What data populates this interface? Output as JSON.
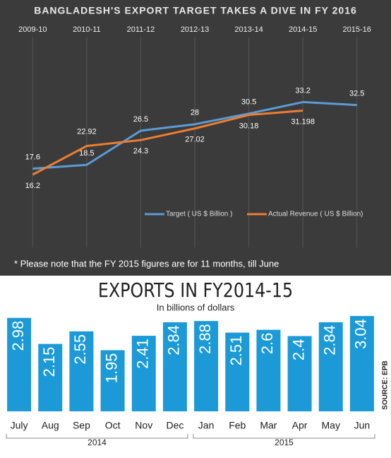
{
  "chart_data": [
    {
      "type": "line",
      "title": "BANGLADESH'S EXPORT TARGET TAKES A DIVE IN FY 2016",
      "categories": [
        "2009-10",
        "2010-11",
        "2011-12",
        "2012-13",
        "2013-14",
        "2014-15",
        "2015-16"
      ],
      "series": [
        {
          "name": "Target ( US $ Billion )",
          "color": "#5b9bd5",
          "values": [
            17.6,
            18.5,
            26.5,
            28,
            30.5,
            33.2,
            32.5
          ]
        },
        {
          "name": "Actual Revenue ( US $ Billion)",
          "color": "#ed7d31",
          "values": [
            16.2,
            22.92,
            24.3,
            27.02,
            30.18,
            31.198,
            null
          ]
        }
      ],
      "ylim": [
        0,
        48
      ],
      "note": "* Please note that the FY 2015 figures are for 11 months, till June",
      "legend": "bottom-right"
    },
    {
      "type": "bar",
      "title": "EXPORTS IN FY2014-15",
      "subtitle": "In billions of dollars",
      "categories": [
        "July",
        "Aug",
        "Sep",
        "Oct",
        "Nov",
        "Dec",
        "Jan",
        "Feb",
        "Mar",
        "Apr",
        "May",
        "Jun"
      ],
      "values": [
        2.98,
        2.15,
        2.55,
        1.95,
        2.41,
        2.84,
        2.88,
        2.51,
        2.6,
        2.4,
        2.84,
        3.04
      ],
      "color": "#1b9ad7",
      "ylim": [
        0,
        3.2
      ],
      "group_labels": [
        "2014",
        "2015"
      ],
      "source": "SOURCE: EPB"
    }
  ]
}
